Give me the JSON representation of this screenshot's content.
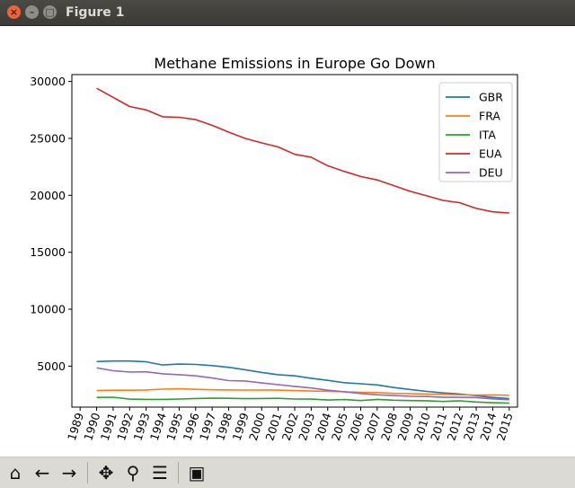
{
  "window": {
    "title": "Figure 1"
  },
  "toolbar": {
    "home": "home-icon",
    "back": "back-arrow-icon",
    "forward": "forward-arrow-icon",
    "pan": "pan-icon",
    "zoom": "zoom-icon",
    "configure": "configure-subplots-icon",
    "save": "save-icon"
  },
  "chart_data": {
    "type": "line",
    "title": "Methane Emissions in Europe Go Down",
    "xlabel": "",
    "ylabel": "",
    "xlim": [
      1988.5,
      2015.5
    ],
    "ylim": [
      1400,
      30600
    ],
    "x_ticks": [
      "1989",
      "1990",
      "1991",
      "1992",
      "1993",
      "1994",
      "1995",
      "1996",
      "1997",
      "1998",
      "1999",
      "2000",
      "2001",
      "2002",
      "2003",
      "2004",
      "2005",
      "2006",
      "2007",
      "2008",
      "2009",
      "2010",
      "2011",
      "2012",
      "2013",
      "2014",
      "2015"
    ],
    "y_ticks": [
      5000,
      10000,
      15000,
      20000,
      25000,
      30000
    ],
    "grid": false,
    "legend_position": "top-right",
    "x": [
      1990,
      1991,
      1992,
      1993,
      1994,
      1995,
      1996,
      1997,
      1998,
      1999,
      2000,
      2001,
      2002,
      2003,
      2004,
      2005,
      2006,
      2007,
      2008,
      2009,
      2010,
      2011,
      2012,
      2013,
      2014,
      2015
    ],
    "series": [
      {
        "name": "GBR",
        "color": "#1f77b4",
        "values": [
          5400,
          5450,
          5450,
          5380,
          5100,
          5180,
          5150,
          5050,
          4900,
          4680,
          4450,
          4250,
          4150,
          3930,
          3750,
          3550,
          3450,
          3350,
          3120,
          2950,
          2780,
          2650,
          2550,
          2400,
          2250,
          2150
        ]
      },
      {
        "name": "FRA",
        "color": "#ff7f0e",
        "values": [
          2850,
          2880,
          2880,
          2910,
          2980,
          3010,
          2960,
          2920,
          2910,
          2900,
          2910,
          2890,
          2850,
          2810,
          2790,
          2750,
          2700,
          2680,
          2610,
          2580,
          2550,
          2520,
          2480,
          2460,
          2470,
          2440
        ]
      },
      {
        "name": "ITA",
        "color": "#2ca02c",
        "values": [
          2250,
          2270,
          2100,
          2080,
          2080,
          2110,
          2160,
          2180,
          2170,
          2140,
          2160,
          2170,
          2110,
          2100,
          2020,
          2060,
          1980,
          2080,
          2010,
          1980,
          1960,
          1900,
          1950,
          1850,
          1790,
          1750
        ]
      },
      {
        "name": "EUA",
        "color": "#d62728",
        "values": [
          29400,
          28600,
          27800,
          27500,
          26900,
          26850,
          26650,
          26150,
          25550,
          25000,
          24600,
          24250,
          23600,
          23350,
          22600,
          22100,
          21650,
          21350,
          20850,
          20350,
          19950,
          19550,
          19350,
          18850,
          18550,
          18450
        ]
      },
      {
        "name": "DEU",
        "color": "#9467bd",
        "values": [
          4850,
          4600,
          4480,
          4500,
          4330,
          4250,
          4150,
          3960,
          3730,
          3700,
          3520,
          3370,
          3220,
          3080,
          2880,
          2750,
          2600,
          2480,
          2420,
          2350,
          2330,
          2260,
          2260,
          2240,
          2130,
          2050
        ]
      }
    ]
  }
}
